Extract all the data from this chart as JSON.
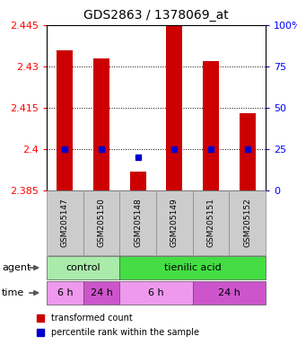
{
  "title": "GDS2863 / 1378069_at",
  "samples": [
    "GSM205147",
    "GSM205150",
    "GSM205148",
    "GSM205149",
    "GSM205151",
    "GSM205152"
  ],
  "bar_values": [
    2.436,
    2.433,
    2.392,
    2.445,
    2.432,
    2.413
  ],
  "bar_bottom": 2.385,
  "blue_values": [
    2.4,
    2.4,
    2.397,
    2.4,
    2.4,
    2.4
  ],
  "ylim_left": [
    2.385,
    2.445
  ],
  "ylim_right": [
    0,
    100
  ],
  "yticks_left": [
    2.385,
    2.4,
    2.415,
    2.43,
    2.445
  ],
  "yticks_right": [
    0,
    25,
    50,
    75,
    100
  ],
  "bar_color": "#cc0000",
  "blue_color": "#0000cc",
  "agent_groups": [
    {
      "label": "control",
      "cols": [
        0,
        1
      ],
      "color": "#aaeaaa"
    },
    {
      "label": "tienilic acid",
      "cols": [
        2,
        3,
        4,
        5
      ],
      "color": "#44dd44"
    }
  ],
  "time_groups": [
    {
      "label": "6 h",
      "cols": [
        0
      ],
      "color": "#ee99ee"
    },
    {
      "label": "24 h",
      "cols": [
        1
      ],
      "color": "#cc55cc"
    },
    {
      "label": "6 h",
      "cols": [
        2,
        3
      ],
      "color": "#ee99ee"
    },
    {
      "label": "24 h",
      "cols": [
        4,
        5
      ],
      "color": "#cc55cc"
    }
  ],
  "legend_items": [
    {
      "label": "transformed count",
      "color": "#cc0000"
    },
    {
      "label": "percentile rank within the sample",
      "color": "#0000cc"
    }
  ],
  "gsm_bg": "#cccccc",
  "title_fontsize": 10,
  "axis_fontsize": 8,
  "label_fontsize": 8
}
